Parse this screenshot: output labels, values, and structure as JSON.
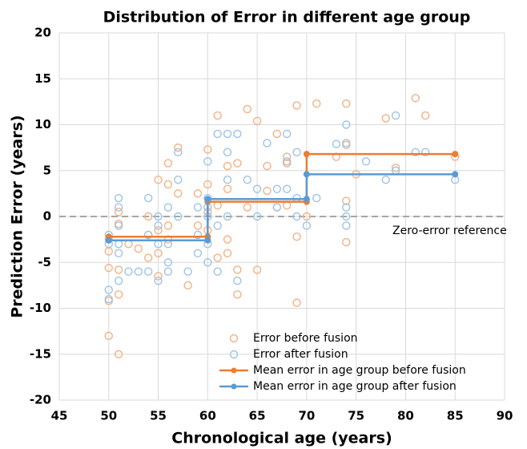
{
  "chart_data": {
    "type": "scatter",
    "title": "Distribution of Error in different age group",
    "x_label": "Chronological age (years)",
    "y_label": "Prediction Error (years)",
    "annotation": "Zero-error reference",
    "reference_line": 0,
    "xlim": [
      45,
      90
    ],
    "xticks": [
      45,
      50,
      55,
      60,
      65,
      70,
      75,
      80,
      85,
      90
    ],
    "ylim": [
      -20,
      20
    ],
    "yticks": [
      -20,
      -15,
      -10,
      -5,
      0,
      5,
      10,
      15,
      20
    ],
    "grid": true,
    "legend_position": "lower right",
    "series": [
      {
        "name": "Error before fusion",
        "type": "scatter",
        "color": "#F4B183",
        "x": [
          50,
          50,
          50,
          50,
          50,
          51,
          51,
          51,
          51,
          51,
          52,
          53,
          54,
          54,
          54,
          55,
          55,
          55,
          55,
          56,
          56,
          56,
          56,
          57,
          57,
          58,
          59,
          59,
          60,
          60,
          60,
          60,
          61,
          61,
          61,
          62,
          62,
          62,
          62,
          63,
          63,
          63,
          64,
          64,
          65,
          65,
          66,
          66,
          67,
          67,
          68,
          68,
          68,
          69,
          69,
          69,
          70,
          71,
          73,
          74,
          74,
          74,
          74,
          75,
          78,
          79,
          81,
          82,
          85
        ],
        "values": [
          -13,
          -9.2,
          -5.6,
          -3.8,
          -2.5,
          -15,
          -8.5,
          -5.8,
          0.5,
          -0.8,
          -3,
          -3.5,
          -4.5,
          0,
          -2,
          4,
          -6.5,
          -1.5,
          -4,
          5.8,
          3.5,
          -1,
          -2.5,
          7.5,
          2.5,
          -7.5,
          2.5,
          -1,
          7.3,
          3.5,
          0.5,
          -1.5,
          11,
          1.2,
          -4.5,
          5.5,
          3,
          -2.5,
          -4,
          5.8,
          -5.8,
          -8.5,
          11.7,
          1,
          10.4,
          -5.8,
          5.5,
          2.8,
          9,
          1,
          6.5,
          5.8,
          1.2,
          12.1,
          -2.2,
          -9.4,
          0,
          12.3,
          6.5,
          12.3,
          7.8,
          1.7,
          -2.8,
          4.6,
          10.7,
          5.3,
          12.9,
          11,
          6.5
        ]
      },
      {
        "name": "Error after fusion",
        "type": "scatter",
        "color": "#9DC3E6",
        "x": [
          50,
          50,
          50,
          50,
          51,
          51,
          51,
          51,
          51,
          51,
          52,
          53,
          54,
          54,
          54,
          55,
          55,
          55,
          55,
          56,
          56,
          56,
          56,
          57,
          57,
          57,
          58,
          59,
          59,
          59,
          60,
          60,
          60,
          60,
          60,
          60,
          61,
          61,
          61,
          62,
          62,
          62,
          62,
          63,
          63,
          64,
          65,
          65,
          66,
          67,
          67,
          68,
          68,
          68,
          69,
          69,
          69,
          70,
          71,
          73,
          74,
          74,
          74,
          74,
          74,
          76,
          78,
          79,
          79,
          81,
          82,
          85
        ],
        "values": [
          -8,
          -9,
          -3,
          -2,
          2,
          1,
          -1,
          -3,
          -4,
          -7,
          -6,
          -6,
          2,
          -6,
          -2,
          -7,
          0,
          -1,
          -3,
          1,
          -3,
          -5,
          -6,
          7,
          4,
          0,
          -6,
          1,
          -2,
          -4,
          6,
          2,
          1,
          0,
          -3,
          -5,
          9,
          -1,
          -6,
          9,
          7,
          4,
          0,
          9,
          -7,
          4,
          3,
          0,
          8,
          3,
          1,
          9,
          6,
          3,
          7,
          2,
          0,
          -1,
          2,
          7.9,
          10,
          8,
          1,
          0,
          -1,
          6,
          4,
          11,
          5,
          7,
          7,
          4
        ]
      },
      {
        "name": "Mean error in age group before fusion",
        "type": "step",
        "color": "#ED7D31",
        "x": [
          50,
          60,
          60,
          70,
          70,
          85
        ],
        "values": [
          -2.2,
          -2.2,
          1.6,
          1.6,
          6.8,
          6.8
        ]
      },
      {
        "name": "Mean error in age group after fusion",
        "type": "step",
        "color": "#5B9BD5",
        "x": [
          50,
          60,
          60,
          70,
          70,
          85
        ],
        "values": [
          -2.6,
          -2.6,
          1.9,
          1.9,
          4.6,
          4.6
        ]
      }
    ]
  }
}
